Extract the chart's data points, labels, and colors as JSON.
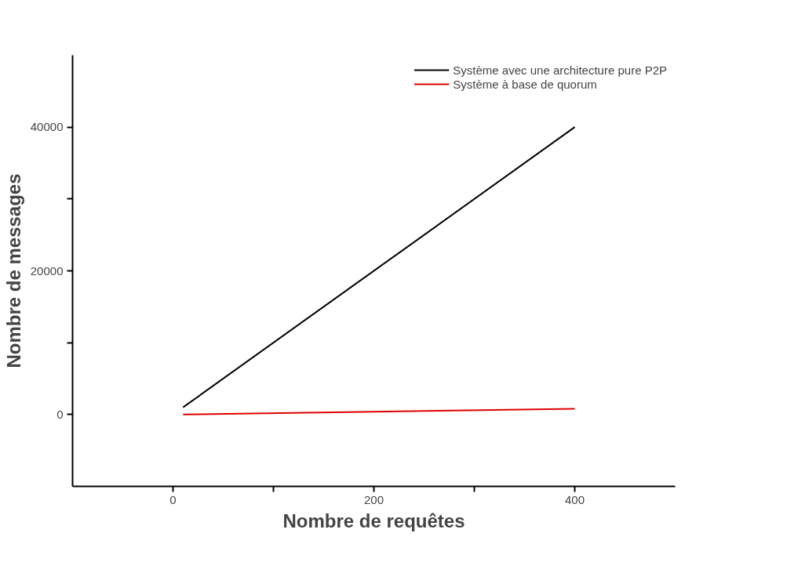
{
  "chart_data": {
    "type": "line",
    "xlabel": "Nombre de requêtes",
    "ylabel": "Nombre de messages",
    "xlim": [
      -100,
      500
    ],
    "ylim": [
      -10000,
      50000
    ],
    "xticks": [
      0,
      {
        "value": 100,
        "label": null
      },
      200,
      {
        "value": 300,
        "label": null
      },
      400
    ],
    "yticks": [
      0,
      {
        "value": 10000,
        "label": null
      },
      20000,
      {
        "value": 30000,
        "label": null
      },
      40000
    ],
    "grid": false,
    "legend": "top right",
    "marker": "none",
    "line_style": "solid",
    "x": [
      10,
      400
    ],
    "series": [
      {
        "name": "Système avec une architecture pure P2P",
        "color": "#000000",
        "values": [
          1000,
          40000
        ]
      },
      {
        "name": "Système à base de quorum",
        "color": "#e00000",
        "values": [
          0,
          800
        ]
      }
    ]
  }
}
